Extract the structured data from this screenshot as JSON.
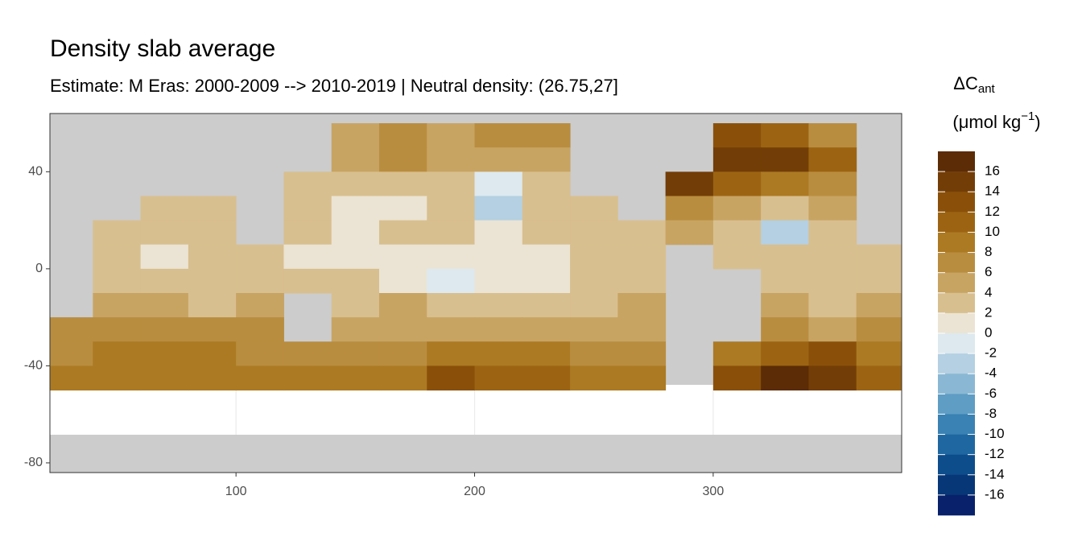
{
  "chart_data": {
    "type": "heatmap",
    "title": "Density slab average",
    "subtitle": "Estimate: M Eras: 2000-2009 --> 2010-2019 | Neutral density: (26.75,27]",
    "x": [
      30,
      50,
      70,
      90,
      110,
      130,
      150,
      170,
      190,
      210,
      230,
      250,
      270,
      290,
      310,
      330,
      350,
      370
    ],
    "y": [
      55,
      45,
      35,
      25,
      15,
      5,
      -5,
      -15,
      -25,
      -35,
      -45
    ],
    "z": [
      [
        null,
        null,
        null,
        null,
        null,
        null,
        5,
        7,
        5,
        6,
        7,
        null,
        null,
        null,
        12,
        10,
        7,
        null
      ],
      [
        null,
        null,
        null,
        null,
        null,
        null,
        5,
        7,
        4,
        4,
        5,
        null,
        null,
        null,
        15,
        14,
        10,
        null
      ],
      [
        null,
        null,
        null,
        null,
        null,
        3,
        3,
        3,
        2,
        -1,
        3,
        null,
        null,
        15,
        10,
        8,
        6,
        null
      ],
      [
        null,
        null,
        3,
        3,
        null,
        2,
        1,
        1,
        2,
        -3,
        2,
        2,
        null,
        6,
        4,
        3,
        4,
        null
      ],
      [
        null,
        3,
        2,
        2,
        null,
        2,
        1,
        2,
        2,
        1,
        2,
        2,
        3,
        4,
        3,
        -3,
        2,
        null
      ],
      [
        null,
        3,
        1,
        2,
        2,
        1,
        1,
        1,
        1,
        1,
        1,
        2,
        2,
        null,
        2,
        2,
        2,
        2
      ],
      [
        null,
        3,
        3,
        3,
        3,
        2,
        2,
        1,
        -1,
        1,
        1,
        2,
        3,
        null,
        null,
        3,
        3,
        3
      ],
      [
        null,
        5,
        4,
        3,
        4,
        null,
        3,
        4,
        2,
        3,
        2,
        3,
        4,
        null,
        null,
        4,
        3,
        4
      ],
      [
        6,
        6,
        6,
        7,
        6,
        null,
        4,
        5,
        5,
        4,
        5,
        4,
        4,
        null,
        null,
        6,
        5,
        6
      ],
      [
        7,
        9,
        9,
        9,
        7,
        6,
        6,
        7,
        8,
        8,
        9,
        7,
        6,
        null,
        8,
        10,
        13,
        9
      ],
      [
        8,
        8,
        8,
        8,
        9,
        9,
        8,
        9,
        13,
        11,
        11,
        9,
        8,
        null,
        12,
        16,
        15,
        11
      ]
    ],
    "xlim": [
      22,
      379
    ],
    "ylim": [
      -84,
      64
    ],
    "xticks": [
      100,
      200,
      300
    ],
    "yticks": [
      40,
      0,
      -40,
      -80
    ],
    "grid": true,
    "legend": {
      "title": "ΔC",
      "title_sub": "ant",
      "unit": "(μmol kg",
      "unit_sup": "−1",
      "unit_end": ")",
      "breaks": [
        16,
        14,
        12,
        10,
        8,
        6,
        4,
        2,
        0,
        -2,
        -4,
        -6,
        -8,
        -10,
        -12,
        -14,
        -16
      ],
      "colors": [
        "#5b2c06",
        "#733d07",
        "#8a5009",
        "#9c6412",
        "#ac7a23",
        "#b98d3f",
        "#c8a463",
        "#d8bf8f",
        "#ebe4d4",
        "#dde9ef",
        "#b4d0e2",
        "#8ab8d4",
        "#5f9dc4",
        "#3a82b3",
        "#1f67a0",
        "#0d4d8c",
        "#073777",
        "#08216a"
      ]
    }
  }
}
